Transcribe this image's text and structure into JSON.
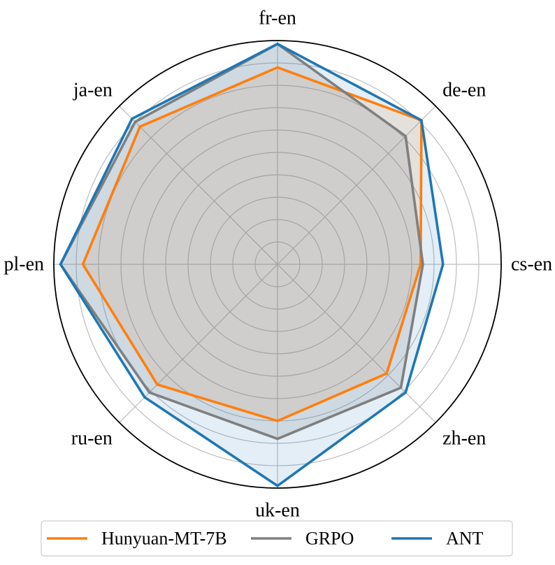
{
  "chart_data": {
    "type": "radar",
    "axes": [
      "fr-en",
      "de-en",
      "cs-en",
      "zh-en",
      "uk-en",
      "ru-en",
      "pl-en",
      "ja-en"
    ],
    "rlim": [
      0,
      1
    ],
    "rings": 10,
    "grid": true,
    "legend_placement": "bottom",
    "series": [
      {
        "name": "Hunyuan-MT-7B",
        "color": "#ff7f0e",
        "fill_color": "#ff7f0e",
        "fill_opacity": 0.12,
        "values": [
          0.88,
          0.91,
          0.64,
          0.69,
          0.7,
          0.76,
          0.87,
          0.87
        ]
      },
      {
        "name": "GRPO",
        "color": "#7f7f7f",
        "fill_color": "#7f7f7f",
        "fill_opacity": 0.18,
        "values": [
          0.985,
          0.81,
          0.65,
          0.78,
          0.78,
          0.81,
          0.97,
          0.9
        ]
      },
      {
        "name": "ANT",
        "color": "#1f77b4",
        "fill_color": "#1f77b4",
        "fill_opacity": 0.12,
        "values": [
          0.985,
          0.91,
          0.74,
          0.81,
          0.99,
          0.84,
          0.97,
          0.92
        ]
      }
    ]
  }
}
